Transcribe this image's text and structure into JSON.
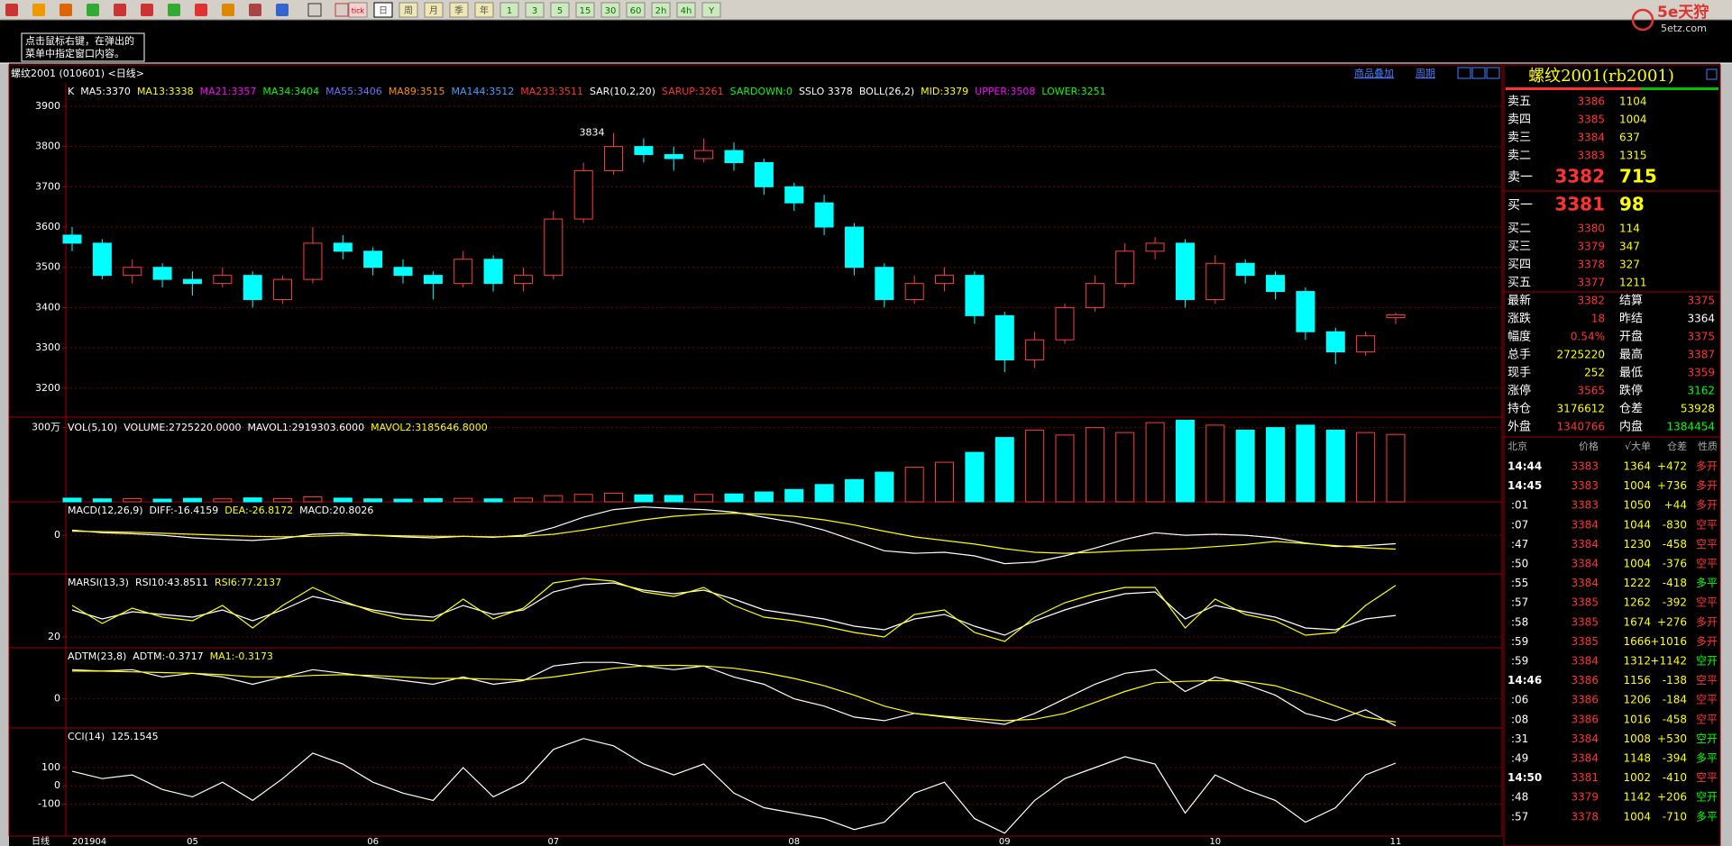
{
  "toolbar": [
    "tick",
    "日",
    "周",
    "月",
    "季",
    "年",
    "1",
    "3",
    "5",
    "15",
    "30",
    "60",
    "2h",
    "4h",
    "Y"
  ],
  "logo": {
    "name": "5e天狩",
    "site": "5etz.com"
  },
  "tip": [
    "点击鼠标右键，在弹出的",
    "菜单中指定窗口内容。"
  ],
  "header": {
    "symbol": "螺纹2001 (010601) <日线>",
    "links": [
      "商品叠加",
      "周期"
    ]
  },
  "chart": {
    "axis_label": "日线",
    "categories": [
      "201904",
      null,
      null,
      null,
      "05",
      null,
      null,
      null,
      null,
      null,
      "06",
      null,
      null,
      null,
      null,
      null,
      "07",
      null,
      null,
      null,
      null,
      null,
      null,
      null,
      "08",
      null,
      null,
      null,
      null,
      null,
      null,
      "09",
      null,
      null,
      null,
      null,
      null,
      null,
      "10",
      null,
      null,
      null,
      null,
      null,
      "11"
    ],
    "price": {
      "type": "candle",
      "ylim": [
        3128,
        3958
      ],
      "yticks": [
        3200,
        3300,
        3400,
        3500,
        3600,
        3700,
        3800,
        3900
      ],
      "legend": [
        {
          "text": "K",
          "color": "#ffffff"
        },
        {
          "text": "MA5:3370",
          "color": "#ffffff"
        },
        {
          "text": "MA13:3338",
          "color": "#ffff00"
        },
        {
          "text": "MA21:3357",
          "color": "#ff00ff"
        },
        {
          "text": "MA34:3404",
          "color": "#00ff00"
        },
        {
          "text": "MA55:3406",
          "color": "#6f6fff"
        },
        {
          "text": "MA89:3515",
          "color": "#ff8c00"
        },
        {
          "text": "MA144:3512",
          "color": "#3fa0ff"
        },
        {
          "text": "MA233:3511",
          "color": "#ff3232"
        },
        {
          "text": "SAR(10,2,20)",
          "color": "#ffffff"
        },
        {
          "text": "SARUP:3261",
          "color": "#ff3232"
        },
        {
          "text": "SARDOWN:0",
          "color": "#00ff00"
        },
        {
          "text": "SSLO 3378",
          "color": "#ffffff"
        },
        {
          "text": "BOLL(26,2)",
          "color": "#ffffff"
        },
        {
          "text": "MID:3379",
          "color": "#ffff00"
        },
        {
          "text": "UPPER:3508",
          "color": "#ff00ff"
        },
        {
          "text": "LOWER:3251",
          "color": "#00ff00"
        }
      ],
      "high_label": 3834,
      "candles": [
        [
          3580,
          3600,
          3540,
          3560
        ],
        [
          3560,
          3570,
          3470,
          3480
        ],
        [
          3480,
          3520,
          3460,
          3500
        ],
        [
          3500,
          3510,
          3450,
          3470
        ],
        [
          3470,
          3490,
          3430,
          3460
        ],
        [
          3460,
          3500,
          3450,
          3480
        ],
        [
          3480,
          3490,
          3400,
          3420
        ],
        [
          3420,
          3480,
          3410,
          3470
        ],
        [
          3470,
          3600,
          3460,
          3560
        ],
        [
          3560,
          3580,
          3520,
          3540
        ],
        [
          3540,
          3550,
          3480,
          3500
        ],
        [
          3500,
          3520,
          3460,
          3480
        ],
        [
          3480,
          3490,
          3420,
          3460
        ],
        [
          3460,
          3540,
          3450,
          3520
        ],
        [
          3520,
          3530,
          3440,
          3460
        ],
        [
          3460,
          3500,
          3440,
          3480
        ],
        [
          3480,
          3640,
          3470,
          3620
        ],
        [
          3620,
          3760,
          3610,
          3740
        ],
        [
          3740,
          3834,
          3730,
          3800
        ],
        [
          3800,
          3820,
          3760,
          3780
        ],
        [
          3780,
          3800,
          3740,
          3770
        ],
        [
          3770,
          3820,
          3760,
          3790
        ],
        [
          3790,
          3810,
          3740,
          3760
        ],
        [
          3760,
          3770,
          3680,
          3700
        ],
        [
          3700,
          3710,
          3640,
          3660
        ],
        [
          3660,
          3680,
          3580,
          3600
        ],
        [
          3600,
          3610,
          3480,
          3500
        ],
        [
          3500,
          3510,
          3400,
          3420
        ],
        [
          3420,
          3480,
          3410,
          3460
        ],
        [
          3460,
          3500,
          3440,
          3480
        ],
        [
          3480,
          3490,
          3360,
          3380
        ],
        [
          3380,
          3390,
          3240,
          3270
        ],
        [
          3270,
          3340,
          3250,
          3320
        ],
        [
          3320,
          3410,
          3310,
          3400
        ],
        [
          3400,
          3480,
          3390,
          3460
        ],
        [
          3460,
          3560,
          3450,
          3540
        ],
        [
          3540,
          3575,
          3520,
          3560
        ],
        [
          3560,
          3570,
          3400,
          3420
        ],
        [
          3420,
          3530,
          3410,
          3510
        ],
        [
          3510,
          3520,
          3460,
          3480
        ],
        [
          3480,
          3490,
          3420,
          3440
        ],
        [
          3440,
          3450,
          3320,
          3340
        ],
        [
          3340,
          3350,
          3260,
          3290
        ],
        [
          3290,
          3340,
          3280,
          3330
        ],
        [
          3375,
          3387,
          3359,
          3382
        ]
      ]
    },
    "volume": {
      "type": "bar",
      "ylim": [
        0,
        3350000
      ],
      "yticks": [
        {
          "value": 3000000,
          "label": "300万"
        }
      ],
      "legend": [
        {
          "text": "VOL(5,10)",
          "color": "#ffffff"
        },
        {
          "text": "VOLUME:2725220.0000",
          "color": "#ffffff"
        },
        {
          "text": "MAVOL1:2919303.6000",
          "color": "#ffffff"
        },
        {
          "text": "MAVOL2:3185646.8000",
          "color": "#ffff00"
        }
      ],
      "values": [
        150000,
        120000,
        130000,
        110000,
        140000,
        120000,
        160000,
        130000,
        200000,
        150000,
        120000,
        110000,
        130000,
        140000,
        120000,
        150000,
        250000,
        300000,
        350000,
        280000,
        260000,
        300000,
        320000,
        400000,
        500000,
        700000,
        900000,
        1200000,
        1400000,
        1600000,
        2000000,
        2600000,
        2900000,
        2700000,
        3000000,
        2800000,
        3200000,
        3300000,
        3100000,
        2900000,
        3000000,
        3100000,
        2900000,
        2800000,
        2725220
      ]
    },
    "macd": {
      "type": "line",
      "ylim": [
        -75,
        65
      ],
      "yticks": [
        0
      ],
      "legend": [
        {
          "text": "MACD(12,26,9)",
          "color": "#ffffff"
        },
        {
          "text": "DIFF:-16.4159",
          "color": "#ffffff"
        },
        {
          "text": "DEA:-26.8172",
          "color": "#ffff00"
        },
        {
          "text": "MACD:20.8026",
          "color": "#ffffff"
        }
      ],
      "series": [
        {
          "color": "#ffffff",
          "values": [
            10,
            5,
            3,
            0,
            -5,
            -8,
            -10,
            -6,
            2,
            4,
            0,
            -3,
            -5,
            -2,
            -4,
            0,
            15,
            35,
            50,
            55,
            52,
            50,
            45,
            35,
            25,
            10,
            -10,
            -30,
            -35,
            -33,
            -40,
            -55,
            -52,
            -40,
            -25,
            -8,
            5,
            0,
            2,
            0,
            -5,
            -15,
            -22,
            -20,
            -16.4159
          ]
        },
        {
          "color": "#ffff00",
          "values": [
            8,
            7,
            6,
            4,
            2,
            0,
            -2,
            -3,
            -2,
            0,
            0,
            -1,
            -2,
            -2,
            -3,
            -2,
            2,
            10,
            20,
            30,
            37,
            41,
            43,
            41,
            37,
            30,
            20,
            8,
            -3,
            -10,
            -17,
            -26,
            -33,
            -35,
            -33,
            -30,
            -28,
            -26,
            -22,
            -18,
            -12,
            -16,
            -20,
            -24,
            -26.8172
          ]
        }
      ]
    },
    "rsi": {
      "type": "line",
      "ylim": [
        8,
        90
      ],
      "yticks": [
        20
      ],
      "legend": [
        {
          "text": "MARSI(13,3)",
          "color": "#ffffff"
        },
        {
          "text": "RSI10:43.8511",
          "color": "#ffffff"
        },
        {
          "text": "RSI6:77.2137",
          "color": "#ffff00"
        }
      ],
      "series": [
        {
          "color": "#ffffff",
          "values": [
            50,
            40,
            48,
            45,
            42,
            50,
            38,
            50,
            65,
            58,
            50,
            45,
            42,
            55,
            45,
            50,
            70,
            78,
            80,
            72,
            68,
            72,
            62,
            50,
            45,
            40,
            32,
            28,
            40,
            45,
            32,
            22,
            38,
            50,
            60,
            68,
            70,
            40,
            55,
            48,
            42,
            30,
            28,
            40,
            43.8511
          ]
        },
        {
          "color": "#ffff00",
          "values": [
            55,
            35,
            52,
            42,
            38,
            55,
            30,
            55,
            75,
            60,
            48,
            40,
            38,
            62,
            40,
            52,
            80,
            85,
            82,
            70,
            65,
            75,
            55,
            42,
            38,
            32,
            25,
            20,
            45,
            50,
            25,
            15,
            42,
            58,
            68,
            75,
            75,
            30,
            62,
            45,
            38,
            22,
            25,
            55,
            77.2137
          ]
        }
      ]
    },
    "adtm": {
      "type": "line",
      "ylim": [
        -0.4,
        0.7
      ],
      "yticks": [
        0
      ],
      "legend": [
        {
          "text": "ADTM(23,8)",
          "color": "#ffffff"
        },
        {
          "text": "ADTM:-0.3717",
          "color": "#ffffff"
        },
        {
          "text": "MA1:-0.3173",
          "color": "#ffff00"
        }
      ],
      "series": [
        {
          "color": "#ffffff",
          "values": [
            0.4,
            0.38,
            0.4,
            0.3,
            0.35,
            0.3,
            0.2,
            0.3,
            0.4,
            0.35,
            0.3,
            0.25,
            0.2,
            0.3,
            0.2,
            0.25,
            0.45,
            0.5,
            0.5,
            0.45,
            0.4,
            0.45,
            0.3,
            0.2,
            0.0,
            -0.1,
            -0.25,
            -0.3,
            -0.2,
            -0.25,
            -0.3,
            -0.35,
            -0.2,
            0.0,
            0.2,
            0.35,
            0.4,
            0.1,
            0.3,
            0.2,
            0.05,
            -0.2,
            -0.3,
            -0.15,
            -0.3717
          ]
        },
        {
          "color": "#ffff00",
          "values": [
            0.38,
            0.38,
            0.37,
            0.36,
            0.35,
            0.33,
            0.3,
            0.3,
            0.32,
            0.33,
            0.32,
            0.3,
            0.28,
            0.28,
            0.27,
            0.26,
            0.3,
            0.36,
            0.42,
            0.45,
            0.46,
            0.45,
            0.42,
            0.36,
            0.28,
            0.18,
            0.05,
            -0.1,
            -0.2,
            -0.24,
            -0.27,
            -0.3,
            -0.28,
            -0.2,
            -0.05,
            0.1,
            0.22,
            0.24,
            0.25,
            0.24,
            0.18,
            0.05,
            -0.1,
            -0.25,
            -0.3173
          ]
        }
      ]
    },
    "cci": {
      "type": "line",
      "ylim": [
        -276,
        318
      ],
      "yticks": [
        -100,
        0,
        100
      ],
      "legend": [
        {
          "text": "CCI(14)",
          "color": "#ffffff"
        },
        {
          "text": "125.1545",
          "color": "#ffffff"
        }
      ],
      "series": [
        {
          "color": "#ffffff",
          "values": [
            80,
            40,
            60,
            -20,
            -60,
            20,
            -80,
            40,
            180,
            120,
            20,
            -40,
            -80,
            100,
            -60,
            20,
            200,
            260,
            220,
            120,
            60,
            120,
            -40,
            -120,
            -150,
            -180,
            -240,
            -200,
            -40,
            20,
            -180,
            -260,
            -80,
            40,
            100,
            160,
            120,
            -150,
            60,
            -20,
            -80,
            -200,
            -120,
            60,
            125.1545
          ]
        }
      ]
    }
  },
  "quote": {
    "title": "螺纹2001(rb2001)",
    "book": [
      {
        "label": "卖五",
        "price": 3386,
        "volume": 1104
      },
      {
        "label": "卖四",
        "price": 3385,
        "volume": 1004
      },
      {
        "label": "卖三",
        "price": 3384,
        "volume": 637
      },
      {
        "label": "卖二",
        "price": 3383,
        "volume": 1315
      },
      {
        "label": "卖一",
        "price": 3382,
        "volume": 715
      },
      {
        "label": "买一",
        "price": 3381,
        "volume": 98
      },
      {
        "label": "买二",
        "price": 3380,
        "volume": 114
      },
      {
        "label": "买三",
        "price": 3379,
        "volume": 347
      },
      {
        "label": "买四",
        "price": 3378,
        "volume": 327
      },
      {
        "label": "买五",
        "price": 3377,
        "volume": 1211
      }
    ],
    "stats": [
      {
        "label": "最新",
        "value": 3382,
        "color": "#ff3232",
        "label2": "结算",
        "value2": 3375,
        "color2": "#ff3232"
      },
      {
        "label": "涨跌",
        "value": 18,
        "color": "#ff3232",
        "label2": "昨结",
        "value2": 3364,
        "color2": "#ffffff"
      },
      {
        "label": "幅度",
        "value": "0.54%",
        "color": "#ff3232",
        "label2": "开盘",
        "value2": 3375,
        "color2": "#ff3232"
      },
      {
        "label": "总手",
        "value": 2725220,
        "color": "#ffff00",
        "label2": "最高",
        "value2": 3387,
        "color2": "#ff3232"
      },
      {
        "label": "现手",
        "value": 252,
        "color": "#ffff00",
        "label2": "最低",
        "value2": 3359,
        "color2": "#ff3232"
      },
      {
        "label": "涨停",
        "value": 3565,
        "color": "#ff3232",
        "label2": "跌停",
        "value2": 3162,
        "color2": "#00ff00"
      },
      {
        "label": "持仓",
        "value": 3176612,
        "color": "#ffff00",
        "label2": "仓差",
        "value2": 53928,
        "color2": "#ffff00"
      },
      {
        "label": "外盘",
        "value": 1340766,
        "color": "#ff3232",
        "label2": "内盘",
        "value2": 1384454,
        "color2": "#00ff00"
      }
    ],
    "trades_header": [
      "北京",
      "价格",
      "√大单",
      "仓差",
      "性质"
    ],
    "trades": [
      [
        "14:44",
        3383,
        1364,
        "+472",
        "多开"
      ],
      [
        "14:45",
        3383,
        1004,
        "+736",
        "多开"
      ],
      [
        ":01",
        3383,
        1050,
        "+44",
        "多开"
      ],
      [
        ":07",
        3384,
        1044,
        "-830",
        "空平"
      ],
      [
        ":47",
        3384,
        1230,
        "-458",
        "空平"
      ],
      [
        ":50",
        3384,
        1004,
        "-376",
        "空平"
      ],
      [
        ":55",
        3384,
        1222,
        "-418",
        "多平"
      ],
      [
        ":57",
        3385,
        1262,
        "-392",
        "空平"
      ],
      [
        ":58",
        3385,
        1674,
        "+276",
        "多开"
      ],
      [
        ":59",
        3385,
        1666,
        "+1016",
        "多开"
      ],
      [
        ":59",
        3384,
        1312,
        "+1142",
        "空开"
      ],
      [
        "14:46",
        3386,
        1156,
        "-138",
        "空平"
      ],
      [
        ":06",
        3386,
        1206,
        "-184",
        "空平"
      ],
      [
        ":08",
        3386,
        1016,
        "-458",
        "空平"
      ],
      [
        ":31",
        3384,
        1008,
        "+530",
        "空开"
      ],
      [
        ":49",
        3384,
        1148,
        "-394",
        "多平"
      ],
      [
        "14:50",
        3381,
        1002,
        "-410",
        "空平"
      ],
      [
        ":48",
        3379,
        1142,
        "+206",
        "空开"
      ],
      [
        ":57",
        3378,
        1004,
        "-710",
        "多平"
      ]
    ]
  }
}
